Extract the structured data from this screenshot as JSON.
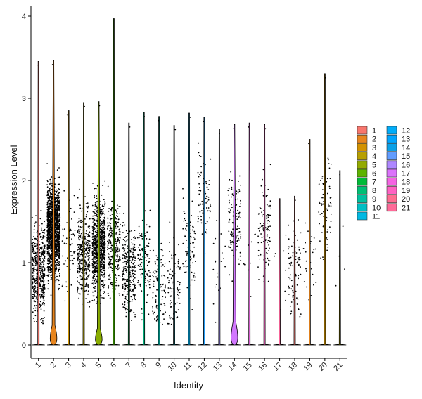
{
  "chart_data": {
    "type": "violin",
    "xlabel": "Identity",
    "ylabel": "Expression Level",
    "ylim": [
      -0.18,
      4.18
    ],
    "yticks": [
      "0",
      "1",
      "2",
      "3",
      "4"
    ],
    "grid": false,
    "legend_position": "right",
    "categories": [
      "1",
      "2",
      "3",
      "4",
      "5",
      "6",
      "7",
      "8",
      "9",
      "10",
      "11",
      "12",
      "13",
      "14",
      "15",
      "16",
      "17",
      "18",
      "19",
      "20",
      "21"
    ],
    "colors": [
      "#F8766D",
      "#E7851E",
      "#D09400",
      "#B2A100",
      "#89AC00",
      "#45B500",
      "#00BC51",
      "#00C087",
      "#00C0B2",
      "#00BCD6",
      "#00B3F2",
      "#29A3FF",
      "#9C8DFF",
      "#D277FF",
      "#F166E8",
      "#FF61C7",
      "#FF689E",
      "#F8766D",
      "#E7851E",
      "#D09400",
      "#B2A100"
    ],
    "legend_colors": [
      "#F8766D",
      "#E7851E",
      "#D39200",
      "#B79F00",
      "#93AA00",
      "#5EB300",
      "#00BA38",
      "#00BF74",
      "#00C19F",
      "#00BFC4",
      "#00B9E3",
      "#00ADFA",
      "#00A5FF",
      "#0AA1E8",
      "#619CFF",
      "#AE87FF",
      "#DB72FB",
      "#F564E3",
      "#FF61C3",
      "#FF6C91",
      "#FF6A98"
    ],
    "max_values": [
      3.45,
      3.46,
      2.85,
      2.95,
      2.96,
      3.97,
      2.7,
      2.83,
      2.78,
      2.67,
      2.82,
      2.77,
      2.62,
      2.68,
      2.7,
      2.68,
      1.78,
      1.81,
      2.5,
      3.3,
      2.12
    ],
    "zero_bulge": [
      0.0,
      0.24,
      0.0,
      0.0,
      0.2,
      0.0,
      0.0,
      0.0,
      0.0,
      0.0,
      0.0,
      0.0,
      0.0,
      0.28,
      0.0,
      0.0,
      0.0,
      0.0,
      0.0,
      0.0,
      0.0
    ],
    "point_density": [
      520,
      1500,
      60,
      380,
      900,
      300,
      280,
      120,
      110,
      90,
      90,
      70,
      20,
      140,
      10,
      110,
      8,
      80,
      25,
      70,
      4
    ],
    "point_center": [
      0.9,
      1.4,
      1.2,
      1.1,
      1.2,
      1.2,
      0.9,
      1.0,
      0.7,
      0.7,
      1.2,
      1.8,
      0.9,
      1.5,
      1.0,
      1.4,
      0.9,
      0.9,
      1.0,
      1.7,
      1.0
    ],
    "series": [
      {
        "name": "Expression Level",
        "values_max": [
          3.45,
          3.46,
          2.85,
          2.95,
          2.96,
          3.97,
          2.7,
          2.83,
          2.78,
          2.67,
          2.82,
          2.77,
          2.62,
          2.68,
          2.7,
          2.68,
          1.78,
          1.81,
          2.5,
          3.3,
          2.12
        ]
      }
    ]
  }
}
